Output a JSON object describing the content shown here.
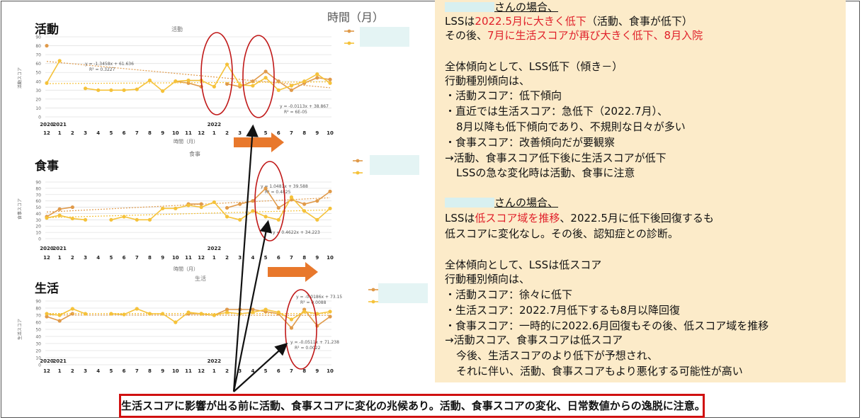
{
  "header": {
    "time_label": "時間（月）"
  },
  "x_tick_top": [
    "2020",
    "2021",
    "",
    "",
    "",
    "",
    "",
    "",
    "",
    "",
    "",
    "",
    "",
    "2022"
  ],
  "x_tick_months": [
    "12",
    "1",
    "2",
    "3",
    "4",
    "5",
    "6",
    "7",
    "8",
    "9",
    "10",
    "11",
    "12",
    "1",
    "2",
    "3",
    "4",
    "5",
    "6",
    "7",
    "8",
    "9",
    "10"
  ],
  "panels": [
    {
      "title": "活動",
      "caption": "活動",
      "ylabel": "活動スコア",
      "xlabel": "時間（月）",
      "eq1": "y = -1.3458x + 61.636",
      "eq1_r2": "R² = 0.3227",
      "eq2": "y = -0.0113x + 38.867",
      "eq2_r2": "R² = 6E-05"
    },
    {
      "title": "食事",
      "caption": "食事",
      "ylabel": "食事スコア",
      "xlabel": "時間（月）",
      "eq1": "y = 1.0481x + 39.588",
      "eq1_r2": "R² = 0.4825",
      "eq2": "y = 0.4622x + 34.223",
      "eq2_r2": ""
    },
    {
      "title": "生活",
      "caption": "生活",
      "ylabel": "生活スコア",
      "xlabel": "",
      "eq1": "y = -0.0186x + 73.15",
      "eq1_r2": "R² = 0.0088",
      "eq2": "y = -0.0511x + 71.238",
      "eq2_r2": "R² = 0.0022"
    }
  ],
  "chart_data": [
    {
      "type": "line",
      "title": "活動",
      "ylim": [
        0,
        90
      ],
      "yticks": [
        0,
        10,
        20,
        30,
        40,
        50,
        60,
        70,
        80,
        90
      ],
      "x": [
        "2020-12",
        "2021-01",
        "2021-02",
        "2021-03",
        "2021-04",
        "2021-05",
        "2021-06",
        "2021-07",
        "2021-08",
        "2021-09",
        "2021-10",
        "2021-11",
        "2021-12",
        "2022-01",
        "2022-02",
        "2022-03",
        "2022-04",
        "2022-05",
        "2022-06",
        "2022-07",
        "2022-08",
        "2022-09",
        "2022-10"
      ],
      "series": [
        {
          "color": "#e09a4a",
          "values": [
            80,
            null,
            null,
            null,
            null,
            null,
            null,
            null,
            null,
            null,
            40,
            38,
            34,
            null,
            37,
            34,
            40,
            51,
            40,
            30,
            38,
            44,
            42
          ]
        },
        {
          "color": "#f5c23a",
          "values": [
            38,
            63,
            null,
            32,
            30,
            30,
            30,
            31,
            41,
            29,
            40,
            41,
            41,
            34,
            59,
            36,
            35,
            44,
            30,
            35,
            40,
            48,
            38
          ]
        }
      ]
    },
    {
      "type": "line",
      "title": "食事",
      "ylim": [
        0,
        90
      ],
      "yticks": [
        0,
        10,
        20,
        30,
        40,
        50,
        60,
        70,
        80,
        90
      ],
      "x": [
        "2020-12",
        "2021-01",
        "2021-02",
        "2021-03",
        "2021-04",
        "2021-05",
        "2021-06",
        "2021-07",
        "2021-08",
        "2021-09",
        "2021-10",
        "2021-11",
        "2021-12",
        "2022-01",
        "2022-02",
        "2022-03",
        "2022-04",
        "2022-05",
        "2022-06",
        "2022-07",
        "2022-08",
        "2022-09",
        "2022-10"
      ],
      "series": [
        {
          "color": "#e09a4a",
          "values": [
            35,
            47,
            50,
            null,
            null,
            null,
            null,
            null,
            null,
            null,
            null,
            55,
            55,
            null,
            49,
            55,
            60,
            80,
            49,
            62,
            55,
            60,
            75
          ]
        },
        {
          "color": "#f5c23a",
          "values": [
            33,
            37,
            32,
            30,
            null,
            30,
            35,
            30,
            30,
            48,
            48,
            53,
            50,
            58,
            35,
            30,
            44,
            35,
            30,
            66,
            44,
            30,
            48
          ]
        }
      ]
    },
    {
      "type": "line",
      "title": "生活",
      "ylim": [
        0,
        90
      ],
      "yticks": [
        0,
        10,
        20,
        30,
        40,
        50,
        60,
        70,
        80,
        90
      ],
      "x": [
        "2020-12",
        "2021-01",
        "2021-02",
        "2021-03",
        "2021-04",
        "2021-05",
        "2021-06",
        "2021-07",
        "2021-08",
        "2021-09",
        "2021-10",
        "2021-11",
        "2021-12",
        "2022-01",
        "2022-02",
        "2022-03",
        "2022-04",
        "2022-05",
        "2022-06",
        "2022-07",
        "2022-08",
        "2022-09",
        "2022-10"
      ],
      "series": [
        {
          "color": "#e09a4a",
          "values": [
            68,
            62,
            72,
            null,
            null,
            null,
            null,
            null,
            null,
            null,
            null,
            72,
            72,
            70,
            78,
            78,
            78,
            75,
            72,
            52,
            78,
            55,
            68
          ]
        },
        {
          "color": "#f5c23a",
          "values": [
            72,
            70,
            79,
            72,
            null,
            72,
            71,
            79,
            72,
            72,
            60,
            74,
            72,
            70,
            74,
            72,
            74,
            78,
            74,
            64,
            75,
            72,
            75
          ]
        }
      ]
    }
  ],
  "right": {
    "p1": [
      "さんの場合、",
      "LSSは",
      "2022.5月に大きく低下",
      "（活動、食事が低下）",
      "その後、",
      "7月に生活スコアが再び大きく低下、8月入院",
      "全体傾向として、LSS低下（傾き－）",
      "行動種別傾向は、",
      "・活動スコア：低下傾向",
      "・直近では生活スコア：急低下（2022.7月）、",
      "8月以降も低下傾向であり、不規則な日々が多い",
      "・食事スコア：改善傾向だが要観察",
      "→活動、食事スコア低下後に生活スコアが低下",
      "LSSの急な変化時は活動、食事に注意"
    ],
    "p2": [
      "さんの場合、",
      "LSSは",
      "低スコア域を推移",
      "、2022.5月に低下後回復するも",
      "低スコアに変化なし。その後、認知症との診断。",
      "全体傾向として、LSSは低スコア",
      "行動種別傾向は、",
      "・活動スコア：徐々に低下",
      "・生活スコア：2022.7月低下するも8月以降回復",
      "・食事スコア：一時的に2022.6月回復もその後、低スコア域を推移",
      "→活動スコア、食事スコアは低スコア",
      "今後、生活スコアのより低下が予想され、",
      "それに伴い、活動、食事スコアもより悪化する可能性が高い"
    ]
  },
  "note": "生活スコアに影響が出る前に活動、食事スコアに変化の兆候あり。活動、食事スコアの変化、日常数値からの逸脱に注意。"
}
